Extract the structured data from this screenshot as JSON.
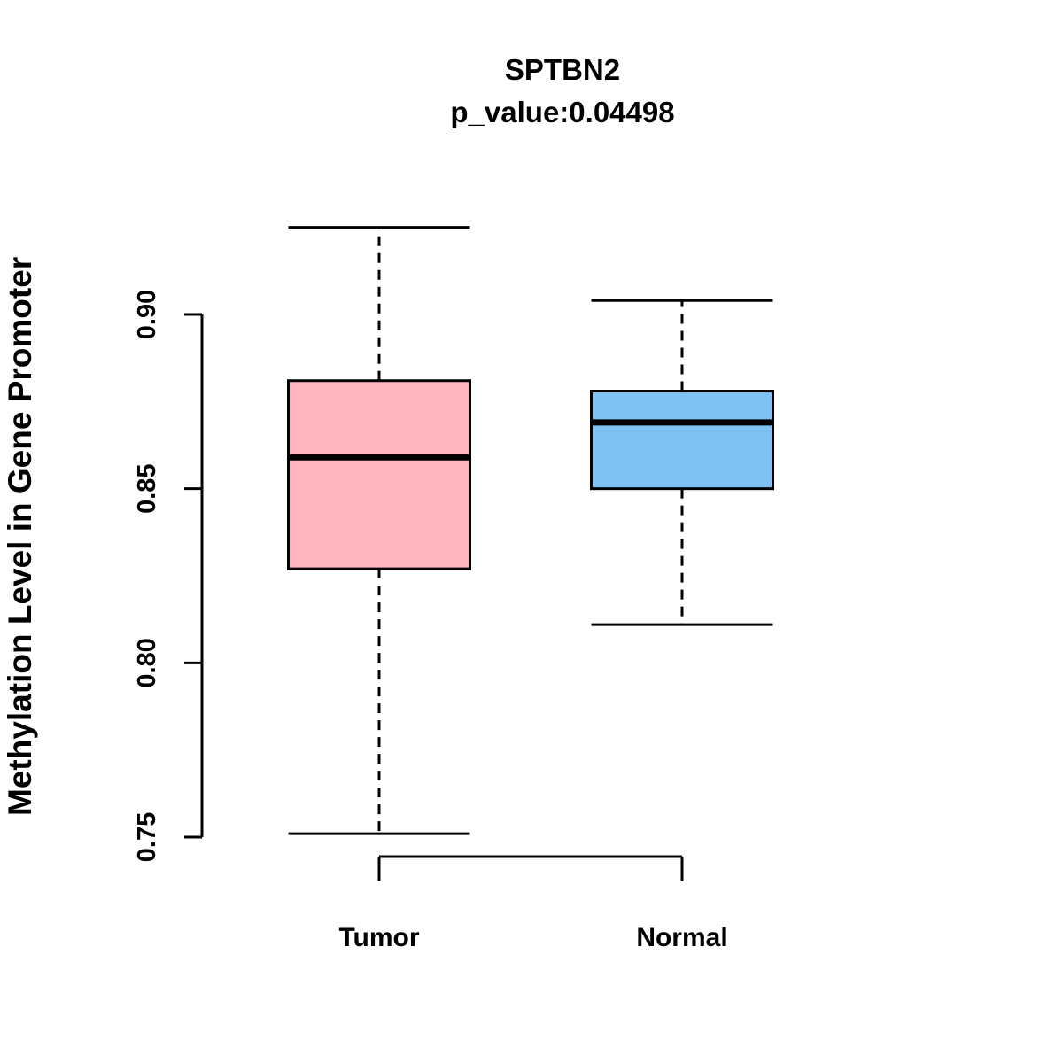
{
  "chart_data": {
    "type": "boxplot",
    "title": "SPTBN2",
    "subtitle": "p_value:0.04498",
    "ylabel": "Methylation Level in Gene Promoter",
    "xlabel": "",
    "yticks": [
      0.75,
      0.8,
      0.85,
      0.9
    ],
    "ytick_labels": [
      "0.75",
      "0.80",
      "0.85",
      "0.90"
    ],
    "ylim": [
      0.745,
      0.93
    ],
    "categories": [
      "Tumor",
      "Normal"
    ],
    "legend": "none",
    "grid": false,
    "groups": [
      {
        "label": "Tumor",
        "color": "#FFB6C1",
        "whisker_low": 0.751,
        "q1": 0.827,
        "median": 0.859,
        "q3": 0.881,
        "whisker_high": 0.925
      },
      {
        "label": "Normal",
        "color": "#7DC2F2",
        "whisker_low": 0.811,
        "q1": 0.85,
        "median": 0.869,
        "q3": 0.878,
        "whisker_high": 0.904
      }
    ],
    "colors": {
      "box_stroke": "#000000",
      "axis": "#000000",
      "text": "#000000"
    }
  }
}
